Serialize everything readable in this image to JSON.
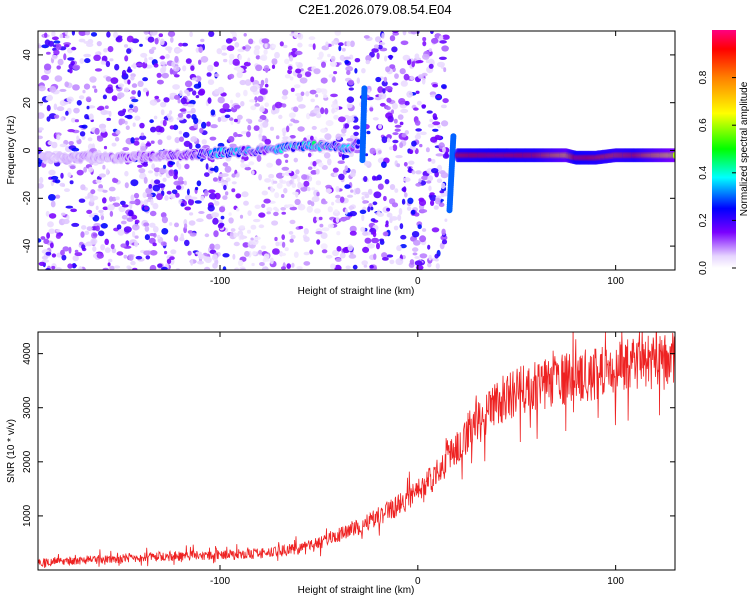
{
  "title": "C2E1.2026.079.08.54.E04",
  "chart_data": [
    {
      "type": "heatmap",
      "name": "spectrogram",
      "xlabel": "Height of straight line (km)",
      "ylabel": "Frequency (Hz)",
      "xlim": [
        -192,
        130
      ],
      "ylim": [
        -50,
        50
      ],
      "xticks": [
        -100,
        0,
        100
      ],
      "yticks": [
        -40,
        -20,
        0,
        20,
        40
      ],
      "colorbar": {
        "label": "Normalized spectral amplitude",
        "range": [
          0,
          1
        ],
        "ticks": [
          0.0,
          0.2,
          0.4,
          0.6,
          0.8
        ],
        "tick_labels": [
          "0.0",
          "0.2",
          "0.4",
          "0.6",
          "0.8"
        ]
      },
      "tracks": [
        {
          "name": "noisy-drift",
          "x": [
            -190,
            -150,
            -120,
            -100,
            -80,
            -60,
            -45,
            -35,
            -30
          ],
          "y": [
            -3,
            -3,
            -2,
            -1,
            0,
            2,
            2,
            1,
            3
          ],
          "amplitude": [
            0.05,
            0.1,
            0.15,
            0.3,
            0.25,
            0.35,
            0.35,
            0.3,
            0.2
          ]
        },
        {
          "name": "spike-a",
          "x": [
            -28,
            -28,
            -27
          ],
          "y": [
            -4,
            15,
            26
          ],
          "amplitude": [
            0.25,
            0.3,
            0.35
          ]
        },
        {
          "name": "spike-b",
          "x": [
            16,
            17,
            18
          ],
          "y": [
            -25,
            -8,
            6
          ],
          "amplitude": [
            0.25,
            0.3,
            0.3
          ]
        },
        {
          "name": "steady-tone",
          "x": [
            20,
            40,
            60,
            75,
            80,
            90,
            100,
            110,
            130
          ],
          "y": [
            -2,
            -2,
            -2,
            -2,
            -3,
            -3,
            -2,
            -2,
            -2
          ],
          "amplitude": [
            0.9,
            0.95,
            0.9,
            0.7,
            0.95,
            0.9,
            0.85,
            0.9,
            0.6
          ]
        }
      ],
      "noise_bands": [
        {
          "x": [
            -192,
            -30
          ],
          "density": "high"
        },
        {
          "x": [
            -28,
            15
          ],
          "density": "high"
        }
      ]
    },
    {
      "type": "line",
      "name": "snr",
      "xlabel": "Height of straight line (km)",
      "ylabel": "SNR (10 * v/v)",
      "xlim": [
        -192,
        130
      ],
      "ylim": [
        0,
        4400
      ],
      "xticks": [
        -100,
        0,
        100
      ],
      "yticks": [
        1000,
        2000,
        3000,
        4000
      ],
      "color": "#ee2222",
      "series": [
        {
          "name": "SNR",
          "x": [
            -190,
            -160,
            -130,
            -100,
            -80,
            -60,
            -50,
            -40,
            -30,
            -20,
            -10,
            0,
            10,
            20,
            30,
            40,
            50,
            60,
            70,
            80,
            90,
            100,
            110,
            120,
            130
          ],
          "y": [
            150,
            200,
            250,
            280,
            300,
            400,
            500,
            650,
            800,
            1000,
            1200,
            1450,
            1800,
            2300,
            2750,
            3100,
            3300,
            3400,
            3500,
            3550,
            3650,
            3750,
            3800,
            3850,
            3900
          ]
        }
      ]
    }
  ]
}
